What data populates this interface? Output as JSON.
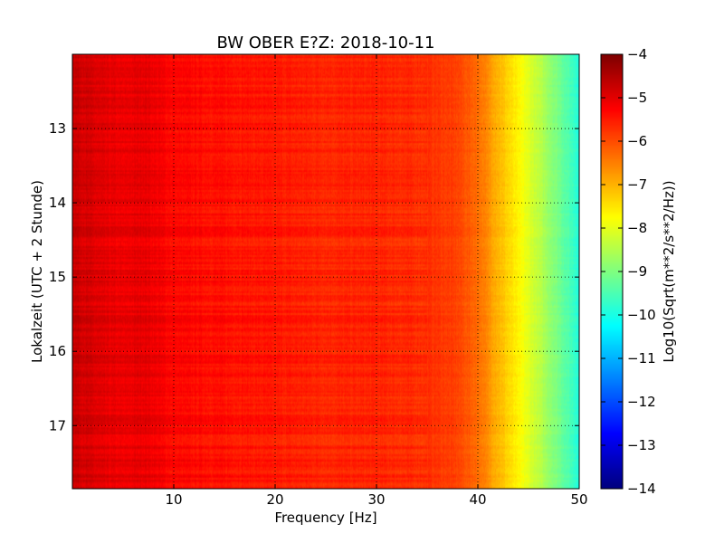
{
  "chart_data": {
    "type": "heatmap",
    "title": "BW OBER E?Z: 2018-10-11",
    "xlabel": "Frequency [Hz]",
    "ylabel": "Lokalzeit (UTC + 2 Stunde)",
    "colorbar_label": "Log10(Sqrt(m**2/s**2/Hz))",
    "x_range": [
      0,
      50
    ],
    "y_range": [
      12.0,
      17.85
    ],
    "y_inverted": true,
    "x_ticks": [
      {
        "value": 10,
        "label": "10"
      },
      {
        "value": 20,
        "label": "20"
      },
      {
        "value": 30,
        "label": "30"
      },
      {
        "value": 40,
        "label": "40"
      },
      {
        "value": 50,
        "label": "50"
      }
    ],
    "y_ticks": [
      {
        "value": 13,
        "label": "13"
      },
      {
        "value": 14,
        "label": "14"
      },
      {
        "value": 15,
        "label": "15"
      },
      {
        "value": 16,
        "label": "16"
      },
      {
        "value": 17,
        "label": "17"
      }
    ],
    "colorbar_range": [
      -14,
      -4
    ],
    "colorbar_ticks": [
      {
        "value": -4,
        "label": "−4"
      },
      {
        "value": -5,
        "label": "−5"
      },
      {
        "value": -6,
        "label": "−6"
      },
      {
        "value": -7,
        "label": "−7"
      },
      {
        "value": -8,
        "label": "−8"
      },
      {
        "value": -9,
        "label": "−9"
      },
      {
        "value": -10,
        "label": "−10"
      },
      {
        "value": -11,
        "label": "−11"
      },
      {
        "value": -12,
        "label": "−12"
      },
      {
        "value": -13,
        "label": "−13"
      },
      {
        "value": -14,
        "label": "−14"
      }
    ],
    "colormap": "jet",
    "grid": true,
    "frequency_profile": {
      "frequency": [
        0,
        1,
        3,
        5,
        7,
        10,
        15,
        20,
        25,
        30,
        35,
        38,
        40,
        42,
        44,
        46,
        48,
        50
      ],
      "level": [
        -4.7,
        -4.8,
        -5.0,
        -5.1,
        -5.0,
        -5.3,
        -5.4,
        -5.5,
        -5.6,
        -5.6,
        -5.7,
        -5.9,
        -6.3,
        -7.0,
        -7.7,
        -8.4,
        -9.1,
        -9.9
      ]
    }
  }
}
